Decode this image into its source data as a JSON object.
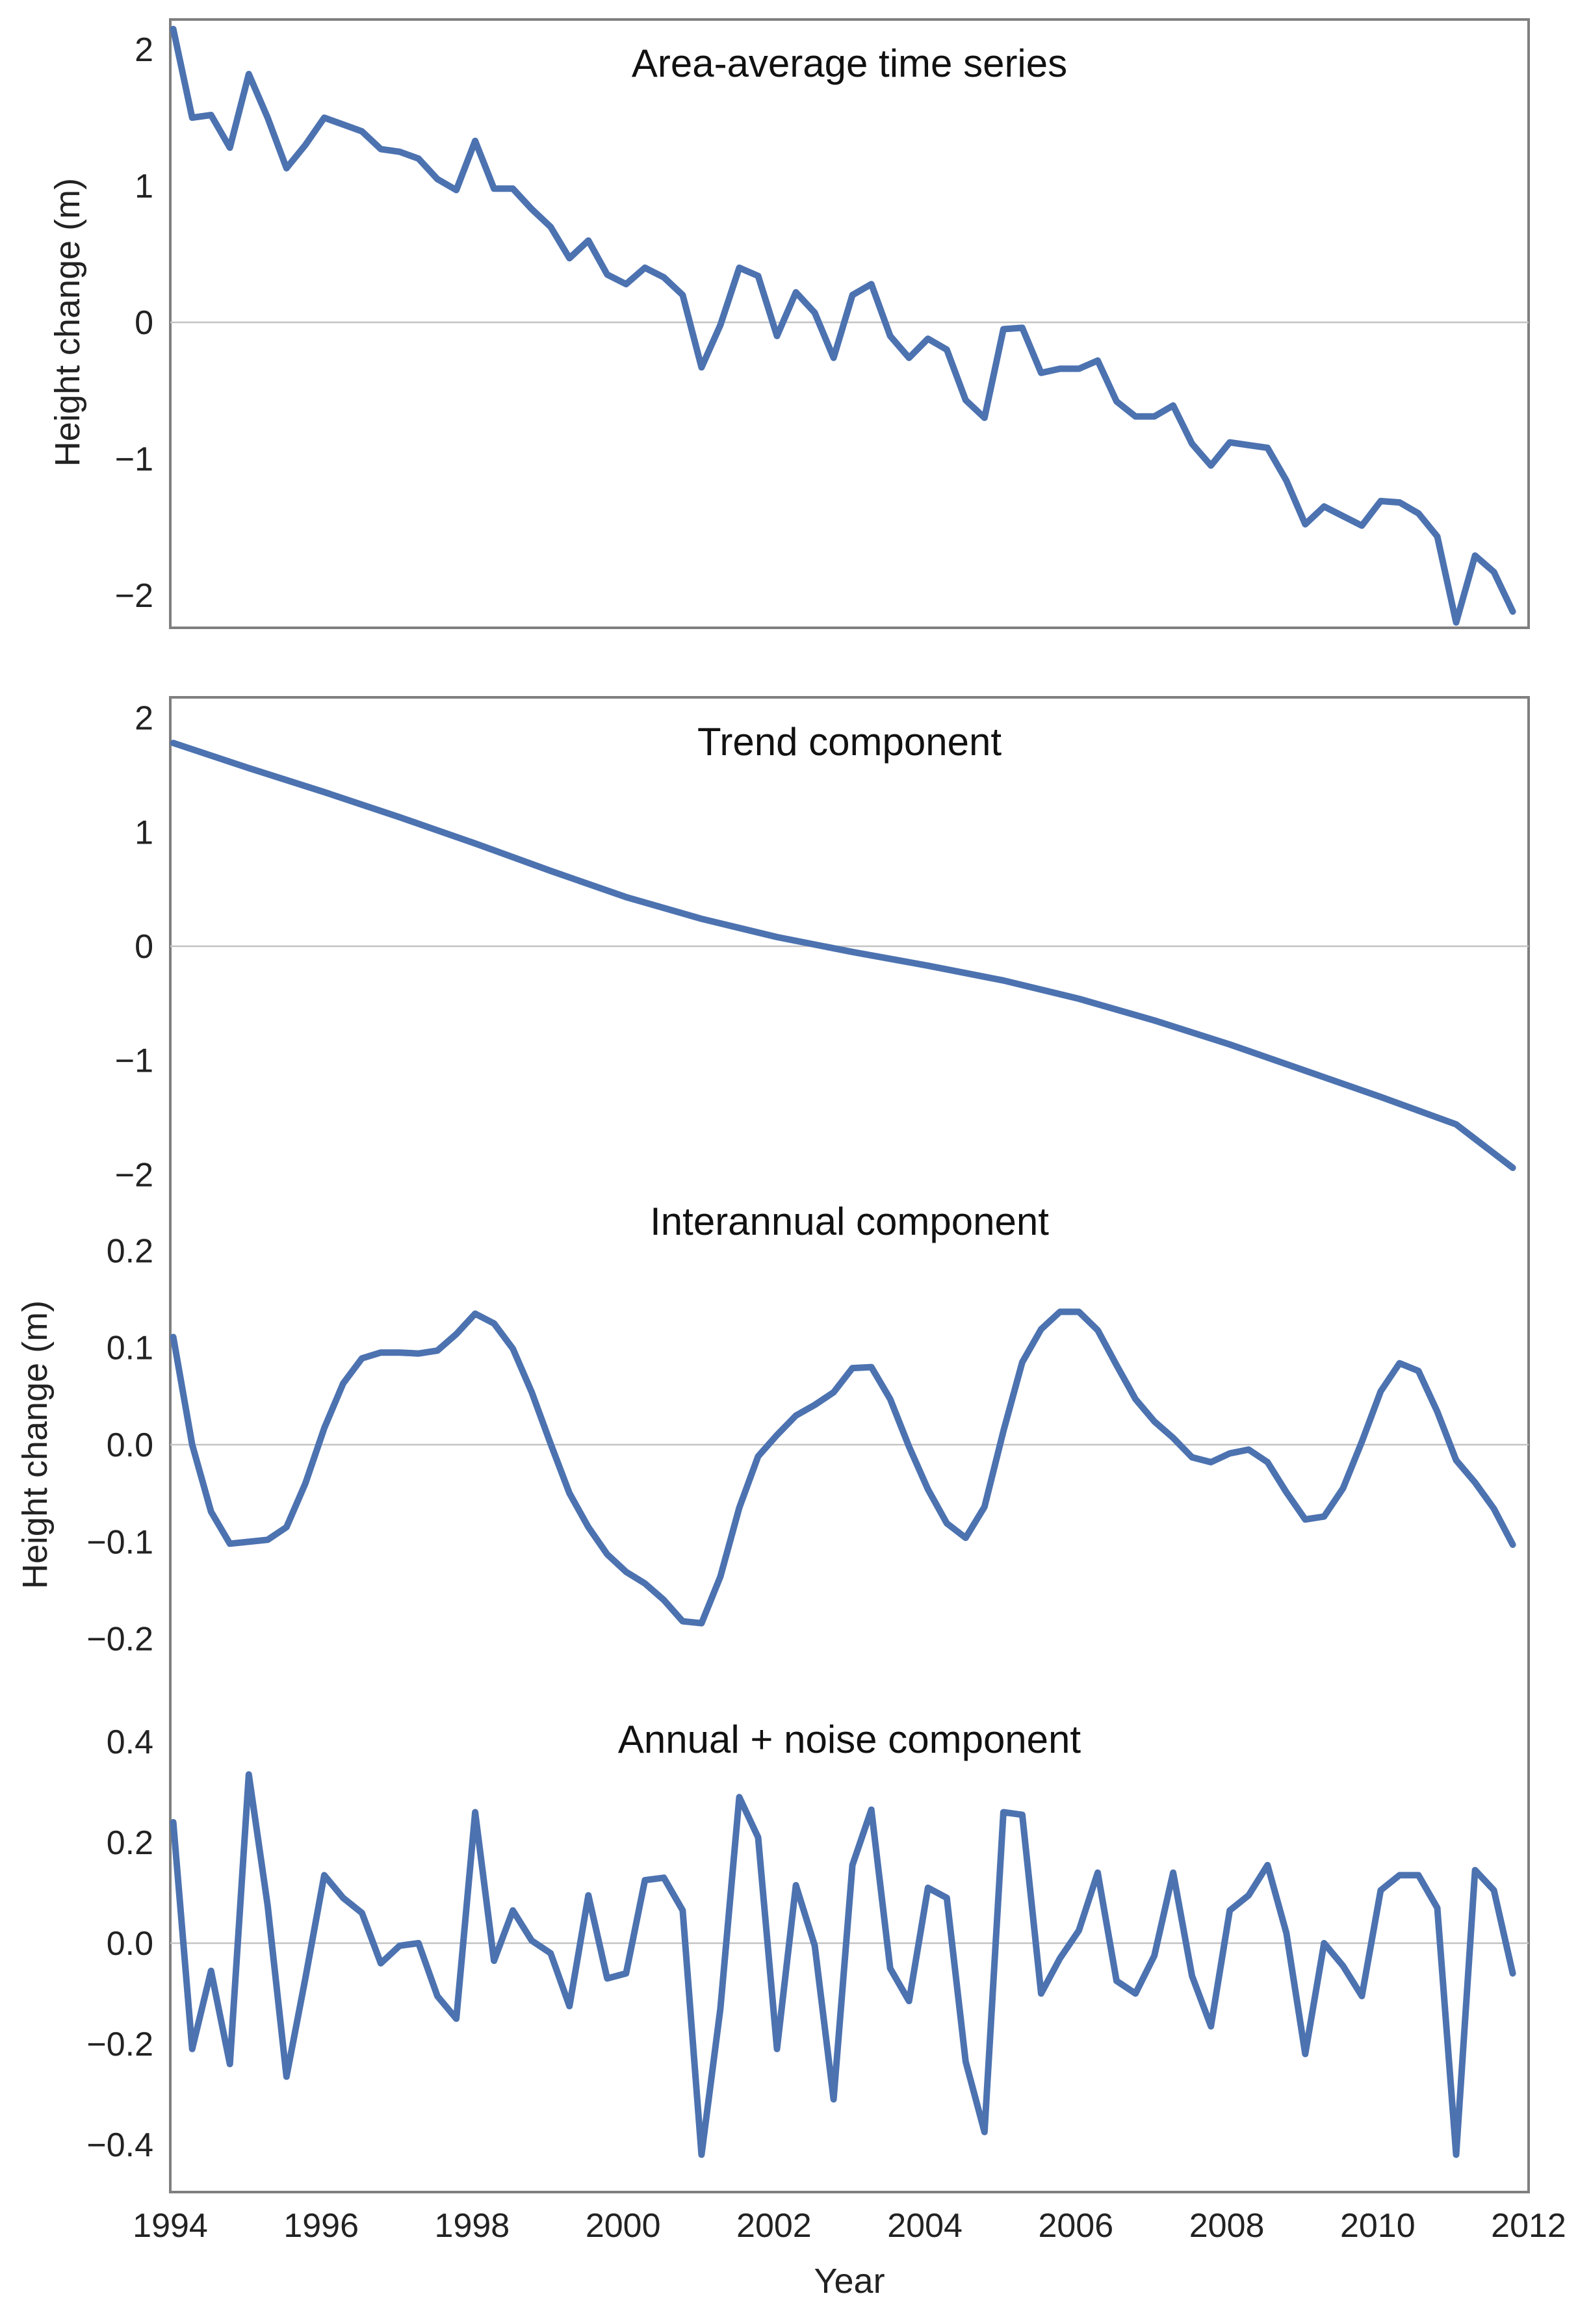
{
  "chart_data": [
    {
      "type": "line",
      "title": "Area-average time series",
      "xlabel": "",
      "ylabel": "Height change (m)",
      "xlim": [
        1994,
        2012
      ],
      "ylim": [
        -2.2,
        2.2
      ],
      "yticks": [
        -2,
        -1,
        0,
        1,
        2
      ],
      "ytick_labels": [
        "−2",
        "−1",
        "0",
        "1",
        "2"
      ],
      "grid": false,
      "zero_line": true,
      "color": "#4c72b0",
      "x": [
        1994.04,
        1994.29,
        1994.54,
        1994.79,
        1995.04,
        1995.29,
        1995.54,
        1995.79,
        1996.04,
        1996.29,
        1996.54,
        1996.79,
        1997.04,
        1997.29,
        1997.54,
        1997.79,
        1998.04,
        1998.29,
        1998.54,
        1998.79,
        1999.04,
        1999.29,
        1999.54,
        1999.79,
        2000.04,
        2000.29,
        2000.54,
        2000.79,
        2001.04,
        2001.29,
        2001.54,
        2001.79,
        2002.04,
        2002.29,
        2002.54,
        2002.79,
        2003.04,
        2003.29,
        2003.54,
        2003.79,
        2004.04,
        2004.29,
        2004.54,
        2004.79,
        2005.04,
        2005.29,
        2005.54,
        2005.79,
        2006.04,
        2006.29,
        2006.54,
        2006.79,
        2007.04,
        2007.29,
        2007.54,
        2007.79,
        2008.04,
        2008.29,
        2008.54,
        2008.79,
        2009.04,
        2009.29,
        2009.54,
        2009.79,
        2010.04,
        2010.29,
        2010.54,
        2010.79,
        2011.04,
        2011.29,
        2011.54,
        2011.79
      ],
      "values": [
        2.15,
        1.5,
        1.52,
        1.28,
        1.82,
        1.5,
        1.13,
        1.3,
        1.5,
        1.45,
        1.4,
        1.27,
        1.25,
        1.2,
        1.05,
        0.97,
        1.33,
        0.98,
        0.98,
        0.83,
        0.7,
        0.47,
        0.6,
        0.35,
        0.28,
        0.4,
        0.33,
        0.2,
        -0.33,
        -0.02,
        0.4,
        0.34,
        -0.1,
        0.22,
        0.07,
        -0.26,
        0.2,
        0.28,
        -0.1,
        -0.26,
        -0.12,
        -0.2,
        -0.57,
        -0.7,
        -0.05,
        -0.04,
        -0.37,
        -0.34,
        -0.34,
        -0.28,
        -0.58,
        -0.69,
        -0.69,
        -0.61,
        -0.89,
        -1.05,
        -0.88,
        -0.9,
        -0.92,
        -1.16,
        -1.48,
        -1.35,
        -1.42,
        -1.49,
        -1.31,
        -1.32,
        -1.4,
        -1.57,
        -2.2,
        -1.71,
        -1.83,
        -2.12
      ]
    },
    {
      "type": "line",
      "title": "Trend component",
      "xlabel": "",
      "ylabel": "",
      "xlim": [
        1994,
        2012
      ],
      "ylim": [
        -2.2,
        2.2
      ],
      "yticks": [
        -2,
        -1,
        0,
        1,
        2
      ],
      "ytick_labels": [
        "−2",
        "−1",
        "0",
        "1",
        "2"
      ],
      "grid": false,
      "zero_line": true,
      "color": "#4c72b0",
      "x": [
        1994.04,
        1995.04,
        1996.04,
        1997.04,
        1998.04,
        1999.04,
        2000.04,
        2001.04,
        2002.04,
        2003.04,
        2004.04,
        2005.04,
        2006.04,
        2007.04,
        2008.04,
        2009.04,
        2010.04,
        2011.04,
        2011.79
      ],
      "values": [
        1.78,
        1.56,
        1.35,
        1.13,
        0.9,
        0.66,
        0.43,
        0.24,
        0.08,
        -0.05,
        -0.17,
        -0.3,
        -0.46,
        -0.65,
        -0.86,
        -1.09,
        -1.32,
        -1.56,
        -1.94
      ]
    },
    {
      "type": "line",
      "title": "Interannual component",
      "xlabel": "",
      "ylabel": "Height change (m)",
      "xlim": [
        1994,
        2012
      ],
      "ylim": [
        -0.22,
        0.22
      ],
      "yticks": [
        -0.2,
        -0.1,
        0.0,
        0.1,
        0.2
      ],
      "ytick_labels": [
        "−0.2",
        "−0.1",
        "0.0",
        "0.1",
        "0.2"
      ],
      "grid": false,
      "zero_line": true,
      "color": "#4c72b0",
      "x": [
        1994.04,
        1994.29,
        1994.54,
        1994.79,
        1995.04,
        1995.29,
        1995.54,
        1995.79,
        1996.04,
        1996.29,
        1996.54,
        1996.79,
        1997.04,
        1997.29,
        1997.54,
        1997.79,
        1998.04,
        1998.29,
        1998.54,
        1998.79,
        1999.04,
        1999.29,
        1999.54,
        1999.79,
        2000.04,
        2000.29,
        2000.54,
        2000.79,
        2001.04,
        2001.29,
        2001.54,
        2001.79,
        2002.04,
        2002.29,
        2002.54,
        2002.79,
        2003.04,
        2003.29,
        2003.54,
        2003.79,
        2004.04,
        2004.29,
        2004.54,
        2004.79,
        2005.04,
        2005.29,
        2005.54,
        2005.79,
        2006.04,
        2006.29,
        2006.54,
        2006.79,
        2007.04,
        2007.29,
        2007.54,
        2007.79,
        2008.04,
        2008.29,
        2008.54,
        2008.79,
        2009.04,
        2009.29,
        2009.54,
        2009.79,
        2010.04,
        2010.29,
        2010.54,
        2010.79,
        2011.04,
        2011.29,
        2011.54,
        2011.79
      ],
      "values": [
        0.111,
        0.0,
        -0.069,
        -0.102,
        -0.1,
        -0.098,
        -0.085,
        -0.04,
        0.017,
        0.063,
        0.089,
        0.095,
        0.095,
        0.094,
        0.097,
        0.114,
        0.135,
        0.125,
        0.099,
        0.054,
        0.001,
        -0.05,
        -0.085,
        -0.113,
        -0.131,
        -0.143,
        -0.16,
        -0.182,
        -0.184,
        -0.136,
        -0.065,
        -0.012,
        0.01,
        0.03,
        0.041,
        0.054,
        0.079,
        0.08,
        0.047,
        -0.002,
        -0.046,
        -0.081,
        -0.096,
        -0.064,
        0.014,
        0.085,
        0.119,
        0.137,
        0.137,
        0.118,
        0.082,
        0.047,
        0.024,
        0.007,
        -0.013,
        -0.018,
        -0.009,
        -0.005,
        -0.018,
        -0.049,
        -0.077,
        -0.074,
        -0.045,
        0.003,
        0.055,
        0.084,
        0.076,
        0.034,
        -0.016,
        -0.039,
        -0.066,
        -0.103
      ]
    },
    {
      "type": "line",
      "title": "Annual + noise component",
      "xlabel": "Year",
      "ylabel": "",
      "xlim": [
        1994,
        2012
      ],
      "ylim": [
        -0.48,
        0.48
      ],
      "yticks": [
        -0.4,
        -0.2,
        0.0,
        0.2,
        0.4
      ],
      "ytick_labels": [
        "−0.4",
        "−0.2",
        "0.0",
        "0.2",
        "0.4"
      ],
      "xticks": [
        1994,
        1996,
        1998,
        2000,
        2002,
        2004,
        2006,
        2008,
        2010,
        2012
      ],
      "xtick_labels": [
        "1994",
        "1996",
        "1998",
        "2000",
        "2002",
        "2004",
        "2006",
        "2008",
        "2010",
        "2012"
      ],
      "grid": false,
      "zero_line": true,
      "color": "#4c72b0",
      "x": [
        1994.04,
        1994.29,
        1994.54,
        1994.79,
        1995.04,
        1995.29,
        1995.54,
        1995.79,
        1996.04,
        1996.29,
        1996.54,
        1996.79,
        1997.04,
        1997.29,
        1997.54,
        1997.79,
        1998.04,
        1998.29,
        1998.54,
        1998.79,
        1999.04,
        1999.29,
        1999.54,
        1999.79,
        2000.04,
        2000.29,
        2000.54,
        2000.79,
        2001.04,
        2001.29,
        2001.54,
        2001.79,
        2002.04,
        2002.29,
        2002.54,
        2002.79,
        2003.04,
        2003.29,
        2003.54,
        2003.79,
        2004.04,
        2004.29,
        2004.54,
        2004.79,
        2005.04,
        2005.29,
        2005.54,
        2005.79,
        2006.04,
        2006.29,
        2006.54,
        2006.79,
        2007.04,
        2007.29,
        2007.54,
        2007.79,
        2008.04,
        2008.29,
        2008.54,
        2008.79,
        2009.04,
        2009.29,
        2009.54,
        2009.79,
        2010.04,
        2010.29,
        2010.54,
        2010.79,
        2011.04,
        2011.29,
        2011.54,
        2011.79
      ],
      "values": [
        0.24,
        -0.21,
        -0.055,
        -0.24,
        0.335,
        0.075,
        -0.265,
        -0.07,
        0.135,
        0.09,
        0.06,
        -0.04,
        -0.005,
        0.0,
        -0.105,
        -0.15,
        0.26,
        -0.035,
        0.065,
        0.005,
        -0.02,
        -0.125,
        0.095,
        -0.07,
        -0.06,
        0.125,
        0.13,
        0.065,
        -0.42,
        -0.13,
        0.29,
        0.21,
        -0.21,
        0.115,
        -0.005,
        -0.31,
        0.155,
        0.265,
        -0.05,
        -0.115,
        0.11,
        0.09,
        -0.235,
        -0.375,
        0.26,
        0.255,
        -0.1,
        -0.03,
        0.025,
        0.14,
        -0.075,
        -0.1,
        -0.025,
        0.14,
        -0.065,
        -0.165,
        0.065,
        0.095,
        0.155,
        0.02,
        -0.22,
        0.0,
        -0.045,
        -0.105,
        0.105,
        0.135,
        0.135,
        0.07,
        -0.42,
        0.145,
        0.105,
        -0.06
      ]
    }
  ]
}
